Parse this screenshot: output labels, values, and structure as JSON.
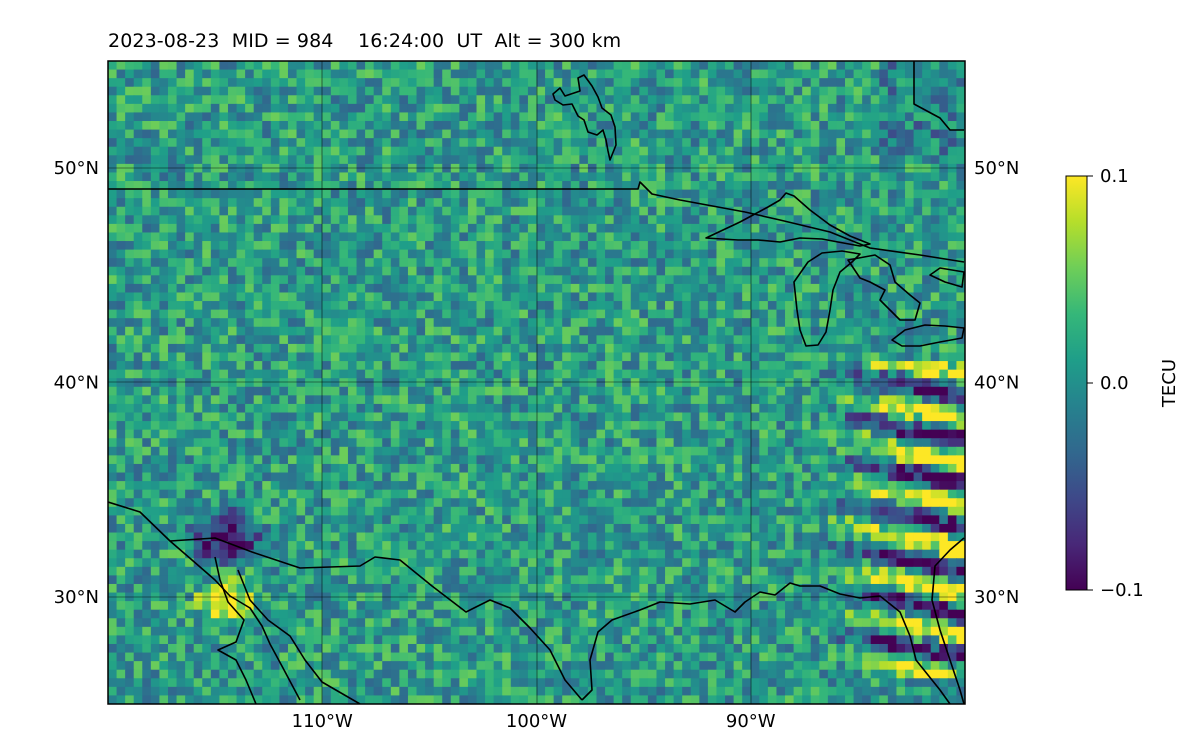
{
  "chart_data": {
    "type": "heatmap",
    "title": "2023-08-23  MID = 984    16:24:00  UT  Alt = 300 km",
    "projection": "PlateCarree",
    "x_axis": {
      "lon_min": -120,
      "lon_max": -80,
      "ticks": [
        -110,
        -100,
        -90
      ],
      "tick_labels": [
        "110°W",
        "100°W",
        "90°W"
      ]
    },
    "y_axis": {
      "lat_min": 25,
      "lat_max": 55,
      "ticks": [
        30,
        40,
        50
      ],
      "tick_labels": [
        "30°N",
        "40°N",
        "50°N"
      ]
    },
    "grid": true,
    "colormap": "viridis",
    "colorbar": {
      "label": "TECU",
      "vmin": -0.1,
      "vmax": 0.1,
      "ticks": [
        0.1,
        0.0,
        -0.1
      ],
      "tick_labels": [
        "0.1",
        "0.0",
        "−0.1"
      ],
      "stops": [
        "#440154",
        "#482878",
        "#3e4989",
        "#31688e",
        "#26828e",
        "#1f9e89",
        "#35b779",
        "#6ece58",
        "#b5de2b",
        "#fde725"
      ]
    },
    "features": [
      "coastlines",
      "borders",
      "lakes"
    ],
    "field_description": "Differential TEC map: background near 0 TECU with mottled small-scale structure; strong positive/negative banded perturbations over the southeastern US (lon -86 to -80, lat 30 to 40) and a negative/positive pair near lon -115, lat 31-34."
  }
}
